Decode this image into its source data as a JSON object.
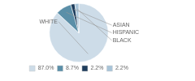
{
  "chart_data": {
    "type": "pie",
    "categories": [
      "WHITE",
      "HISPANIC",
      "ASIAN",
      "BLACK"
    ],
    "values": [
      87.0,
      8.7,
      2.2,
      2.2
    ],
    "value_labels": [
      "87.0%",
      "8.7%",
      "2.2%",
      "2.2%"
    ],
    "colors": [
      "#cddce8",
      "#5b8fa8",
      "#1e3d5c",
      "#a8c4d8"
    ],
    "legend": "bottom"
  }
}
